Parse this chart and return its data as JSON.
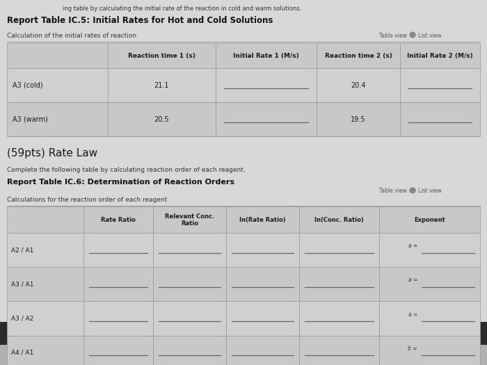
{
  "bg_color": "#b0b0b0",
  "page_bg": "#d8d8d8",
  "top_text": "ing table by calculating the initial rate of the reaction in cold and warm solutions.",
  "title1": "Report Table IC.5: Initial Rates for Hot and Cold Solutions",
  "subtitle1": "Calculation of the initial rates of reaction",
  "table_view_text": "Table view",
  "list_view_text": "List view",
  "table1_headers": [
    "",
    "Reaction time 1 (s)",
    "Initial Rate 1 (M/s)",
    "Reaction time 2 (s)",
    "Initial Rate 2 (M/s)"
  ],
  "table1_rows": [
    [
      "A3 (cold)",
      "21.1",
      "",
      "20.4",
      ""
    ],
    [
      "A3 (warm)",
      "20.5",
      "",
      "19.5",
      ""
    ]
  ],
  "section_title": "(59pts) Rate Law",
  "section_subtitle": "Complete the following table by calculating reaction order of each reagent.",
  "title2": "Report Table IC.6: Determination of Reaction Orders",
  "subtitle2": "Calculations for the reaction order of each reagent",
  "table2_headers": [
    "",
    "Rate Ratio",
    "Relevant Conc.\nRatio",
    "ln(Rate Ratio)",
    "ln(Conc. Ratio)",
    "Exponent"
  ],
  "table2_rows": [
    [
      "A2 / A1",
      "",
      "",
      "",
      "",
      "a ="
    ],
    [
      "A3 / A1",
      "",
      "",
      "",
      "",
      "a ="
    ],
    [
      "A3 / A2",
      "",
      "",
      "",
      "",
      "a ="
    ],
    [
      "A4 / A1",
      "",
      "",
      "",
      "",
      "b ="
    ]
  ],
  "header_bg": "#c8c8c8",
  "row_bg_odd": "#d0d0d0",
  "row_bg_even": "#c8c8c8",
  "border_color": "#999999",
  "text_color": "#1a1a1a",
  "title_color": "#111111",
  "faint_text_color": "#333333",
  "toggle_color": "#555555",
  "underline_color": "#666666",
  "bottom_dark": "#2a2a2a"
}
